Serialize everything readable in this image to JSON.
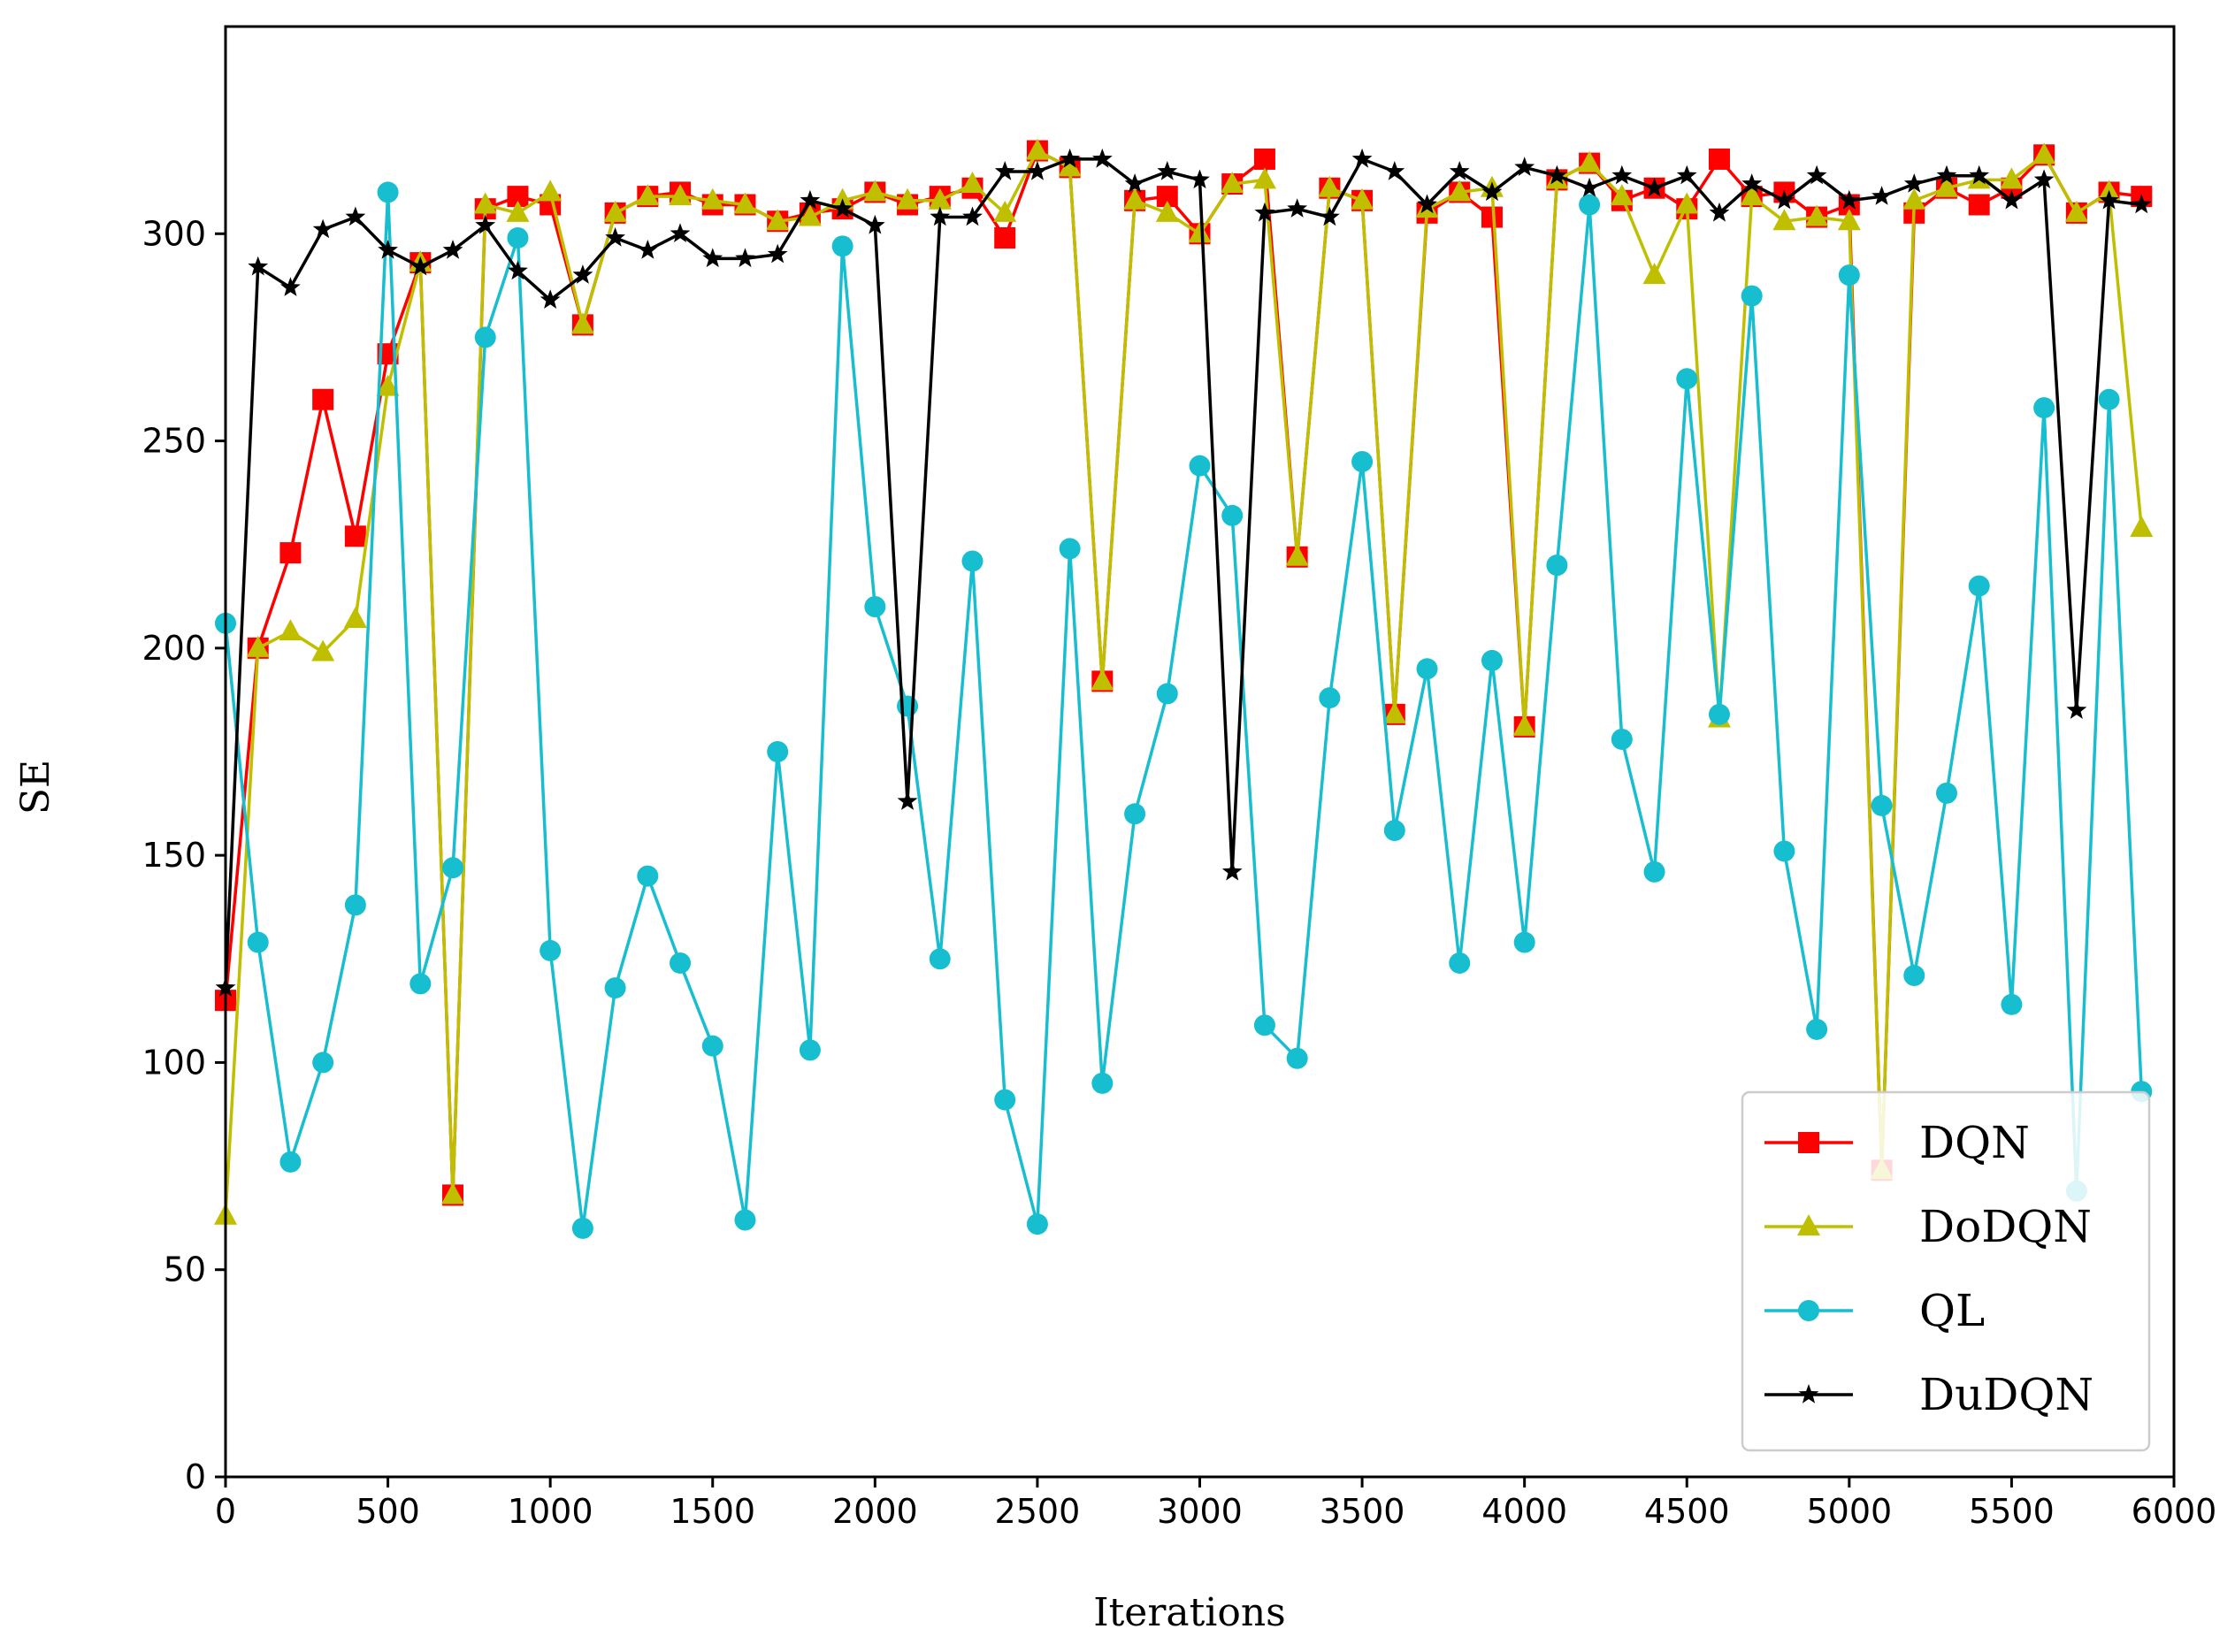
{
  "chart_data": {
    "type": "line",
    "title": "",
    "xlabel": "Iterations",
    "ylabel": "SE",
    "xlim": [
      0,
      6000
    ],
    "ylim": [
      0,
      350
    ],
    "xticks": [
      0,
      500,
      1000,
      1500,
      2000,
      2500,
      3000,
      3500,
      4000,
      4500,
      5000,
      5500,
      6000
    ],
    "yticks": [
      0,
      50,
      100,
      150,
      200,
      250,
      300
    ],
    "grid": false,
    "legend_position": "bottom-right",
    "x": [
      0,
      100,
      200,
      300,
      400,
      500,
      600,
      700,
      800,
      900,
      1000,
      1100,
      1200,
      1300,
      1400,
      1500,
      1600,
      1700,
      1800,
      1900,
      2000,
      2100,
      2200,
      2300,
      2400,
      2500,
      2600,
      2700,
      2800,
      2900,
      3000,
      3100,
      3200,
      3300,
      3400,
      3500,
      3600,
      3700,
      3800,
      3900,
      4000,
      4100,
      4200,
      4300,
      4400,
      4500,
      4600,
      4700,
      4800,
      4900,
      5000,
      5100,
      5200,
      5300,
      5400,
      5500,
      5600,
      5700,
      5800,
      5900
    ],
    "series": [
      {
        "name": "DQN",
        "color": "#ff0000",
        "marker": "square",
        "values": [
          115,
          200,
          223,
          260,
          227,
          271,
          293,
          68,
          306,
          309,
          307,
          278,
          305,
          309,
          310,
          307,
          307,
          303,
          305,
          306,
          310,
          307,
          309,
          311,
          299,
          320,
          316,
          192,
          308,
          309,
          300,
          312,
          318,
          222,
          311,
          308,
          184,
          305,
          310,
          304,
          181,
          313,
          317,
          308,
          311,
          306,
          318,
          309,
          310,
          304,
          307,
          74,
          305,
          311,
          307,
          311,
          319,
          305,
          310,
          309
        ]
      },
      {
        "name": "DoDQN",
        "color": "#bfbf00",
        "marker": "triangle",
        "values": [
          63,
          200,
          204,
          199,
          207,
          263,
          293,
          68,
          307,
          305,
          310,
          278,
          305,
          309,
          309,
          308,
          307,
          303,
          304,
          308,
          310,
          308,
          308,
          312,
          305,
          320,
          316,
          192,
          308,
          305,
          300,
          312,
          313,
          222,
          311,
          308,
          184,
          306,
          310,
          311,
          181,
          313,
          317,
          309,
          290,
          307,
          183,
          309,
          303,
          304,
          303,
          74,
          308,
          311,
          313,
          313,
          319,
          305,
          310,
          229
        ]
      },
      {
        "name": "QL",
        "color": "#17becf",
        "marker": "circle",
        "values": [
          206,
          129,
          76,
          100,
          138,
          310,
          119,
          147,
          275,
          299,
          127,
          60,
          118,
          145,
          124,
          104,
          62,
          175,
          103,
          297,
          210,
          186,
          125,
          221,
          91,
          61,
          224,
          95,
          160,
          189,
          244,
          232,
          109,
          101,
          188,
          245,
          156,
          195,
          124,
          197,
          129,
          220,
          307,
          178,
          146,
          265,
          184,
          285,
          151,
          108,
          290,
          162,
          121,
          165,
          215,
          114,
          258,
          69,
          260,
          93
        ]
      },
      {
        "name": "DuDQN",
        "color": "#000000",
        "marker": "star",
        "values": [
          118,
          292,
          287,
          301,
          304,
          296,
          292,
          296,
          302,
          291,
          284,
          290,
          299,
          296,
          300,
          294,
          294,
          295,
          308,
          306,
          302,
          163,
          304,
          304,
          315,
          315,
          318,
          318,
          312,
          315,
          313,
          146,
          305,
          306,
          304,
          318,
          315,
          307,
          315,
          310,
          316,
          314,
          311,
          314,
          311,
          314,
          305,
          312,
          308,
          314,
          308,
          309,
          312,
          314,
          314,
          308,
          313,
          185,
          308,
          307
        ]
      }
    ]
  }
}
